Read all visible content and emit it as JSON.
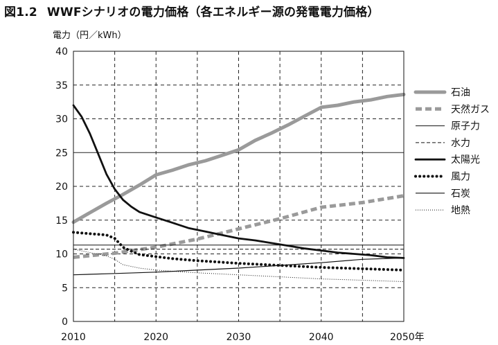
{
  "figure": {
    "number": "図1.2",
    "title": "WWFシナリオの電力価格（各エネルギー源の発電電力価格）"
  },
  "chart_data": {
    "type": "line",
    "ylabel": "電力（円／kWh）",
    "xlabel": "",
    "xlim": [
      2010,
      2050
    ],
    "ylim": [
      0,
      40
    ],
    "x_ticks": [
      2010,
      2020,
      2030,
      2040,
      2050
    ],
    "x_tick_labels": [
      "2010",
      "2020",
      "2030",
      "2040",
      "2050年"
    ],
    "y_ticks": [
      0,
      5,
      10,
      15,
      20,
      25,
      30,
      35,
      40
    ],
    "x_grid": [
      2015,
      2020,
      2025,
      2030,
      2035,
      2040,
      2045
    ],
    "y_grid": [
      5,
      10,
      15,
      20,
      25,
      30,
      35
    ],
    "legend_position": "right",
    "series": [
      {
        "name": "石油",
        "style": "thick-gray",
        "x": [
          2010,
          2012,
          2014,
          2016,
          2018,
          2020,
          2022,
          2024,
          2026,
          2028,
          2030,
          2032,
          2034,
          2036,
          2038,
          2040,
          2042,
          2044,
          2046,
          2048,
          2050
        ],
        "y": [
          14.7,
          16.1,
          17.5,
          18.8,
          20.2,
          21.7,
          22.4,
          23.2,
          23.8,
          24.6,
          25.4,
          26.8,
          27.9,
          29.1,
          30.4,
          31.7,
          32.0,
          32.5,
          32.8,
          33.3,
          33.6
        ]
      },
      {
        "name": "天然ガス",
        "style": "thick-gray-dashed",
        "x": [
          2010,
          2015,
          2020,
          2025,
          2030,
          2035,
          2040,
          2045,
          2050
        ],
        "y": [
          9.5,
          10.1,
          11.0,
          12.2,
          13.7,
          15.2,
          16.9,
          17.6,
          18.6
        ]
      },
      {
        "name": "原子力",
        "style": "thin-solid",
        "x": [
          2010,
          2050
        ],
        "y": [
          11.3,
          11.3
        ]
      },
      {
        "name": "水力",
        "style": "thin-dashed",
        "x": [
          2010,
          2050
        ],
        "y": [
          10.7,
          10.7
        ]
      },
      {
        "name": "太陽光",
        "style": "bold-black",
        "x": [
          2010,
          2011,
          2012,
          2013,
          2014,
          2015,
          2016,
          2017,
          2018,
          2020,
          2022,
          2024,
          2026,
          2028,
          2030,
          2032,
          2034,
          2036,
          2038,
          2040,
          2042,
          2044,
          2046,
          2048,
          2050
        ],
        "y": [
          32.0,
          30.3,
          27.8,
          24.8,
          21.8,
          19.6,
          18.0,
          17.0,
          16.2,
          15.4,
          14.6,
          13.8,
          13.3,
          12.8,
          12.3,
          12.0,
          11.6,
          11.2,
          10.8,
          10.5,
          10.2,
          10.0,
          9.8,
          9.5,
          9.4
        ]
      },
      {
        "name": "風力",
        "style": "dotted-black",
        "x": [
          2010,
          2012,
          2014,
          2015,
          2016,
          2017,
          2018,
          2020,
          2022,
          2025,
          2030,
          2035,
          2040,
          2045,
          2050
        ],
        "y": [
          13.2,
          13.0,
          12.8,
          12.3,
          11.0,
          10.4,
          9.9,
          9.6,
          9.3,
          9.0,
          8.6,
          8.3,
          8.0,
          7.8,
          7.6
        ]
      },
      {
        "name": "石炭",
        "style": "thin-solid-2",
        "x": [
          2010,
          2015,
          2020,
          2025,
          2030,
          2035,
          2040,
          2045,
          2050
        ],
        "y": [
          6.9,
          7.1,
          7.3,
          7.6,
          7.9,
          8.3,
          8.7,
          9.2,
          9.4
        ]
      },
      {
        "name": "地熱",
        "style": "fine-dotted",
        "x": [
          2010,
          2012,
          2014,
          2015,
          2016,
          2018,
          2020,
          2025,
          2030,
          2035,
          2040,
          2045,
          2050
        ],
        "y": [
          10.7,
          10.2,
          9.7,
          9.2,
          8.4,
          7.9,
          7.6,
          7.2,
          6.9,
          6.6,
          6.3,
          6.1,
          5.9
        ]
      }
    ]
  }
}
